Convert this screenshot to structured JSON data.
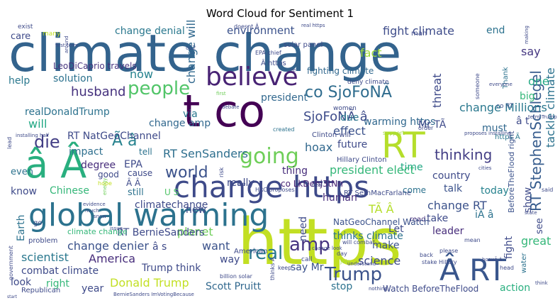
{
  "chart_data": {
    "type": "wordcloud",
    "title": "Word Cloud for Sentiment 1",
    "words": [
      {
        "text": "climate change",
        "color": "#33638d"
      },
      {
        "text": "t co",
        "color": "#440154"
      },
      {
        "text": "https",
        "color": "#c2df23"
      },
      {
        "text": "global warming",
        "color": "#2c728e"
      },
      {
        "text": "change https",
        "color": "#3e4a89"
      },
      {
        "text": "â Â",
        "color": "#29af7f"
      },
      {
        "text": "RT",
        "color": "#b5de2b"
      },
      {
        "text": "believe",
        "color": "#482374"
      },
      {
        "text": "Â RT",
        "color": "#39568c"
      },
      {
        "text": "going",
        "color": "#6ece58"
      },
      {
        "text": "people",
        "color": "#52c569"
      },
      {
        "text": "amp",
        "color": "#463480"
      },
      {
        "text": "real",
        "color": "#2a788e"
      },
      {
        "text": "Trump",
        "color": "#3b528b"
      },
      {
        "text": "co SjoFoNÃ",
        "color": "#2f6c8e"
      },
      {
        "text": "SjoFoNÃ â",
        "color": "#3e4c8a"
      },
      {
        "text": "die",
        "color": "#433e85"
      },
      {
        "text": "Ã â",
        "color": "#26828e"
      },
      {
        "text": "world",
        "color": "#3b528b"
      },
      {
        "text": "thinking",
        "color": "#433e85"
      },
      {
        "text": "RT SenSanders",
        "color": "#2e6f8e"
      },
      {
        "text": "RT StephenSchlegel",
        "color": "#365c8d"
      },
      {
        "text": "tackle climate",
        "color": "#2c728e"
      },
      {
        "text": "threat",
        "color": "#3e4a89"
      },
      {
        "text": "change Millions",
        "color": "#2a788e"
      },
      {
        "text": "co RT",
        "color": "#3b528b"
      },
      {
        "text": "say",
        "color": "#453781"
      },
      {
        "text": "one",
        "color": "#22a884"
      },
      {
        "text": "big",
        "color": "#35b779"
      },
      {
        "text": "must",
        "color": "#31688e"
      },
      {
        "text": "â t",
        "color": "#3e4a89"
      },
      {
        "text": "fight climate",
        "color": "#3e4c8a"
      },
      {
        "text": "end",
        "color": "#2c728e"
      },
      {
        "text": "fact",
        "color": "#a0da39"
      },
      {
        "text": "change denial",
        "color": "#2a788e"
      },
      {
        "text": "environment",
        "color": "#3b528b"
      },
      {
        "text": "change will",
        "color": "#31688e"
      },
      {
        "text": "now",
        "color": "#26828e"
      },
      {
        "text": "solution",
        "color": "#2c728e"
      },
      {
        "text": "help",
        "color": "#2a788e"
      },
      {
        "text": "care",
        "color": "#3e4a89"
      },
      {
        "text": "husband",
        "color": "#46327e"
      },
      {
        "text": "realDonaldTrump",
        "color": "#2c728e"
      },
      {
        "text": "will",
        "color": "#22a884"
      },
      {
        "text": "LeoDiCaprio travels",
        "color": "#46337e"
      },
      {
        "text": "president",
        "color": "#31688e"
      },
      {
        "text": "impact",
        "color": "#2e6f8e"
      },
      {
        "text": "EPA",
        "color": "#3e4a89"
      },
      {
        "text": "degree",
        "color": "#472d7b"
      },
      {
        "text": "via",
        "color": "#2a788e"
      },
      {
        "text": "change amp",
        "color": "#31688e"
      },
      {
        "text": "RT NatGeoChannel",
        "color": "#3e4a89"
      },
      {
        "text": "effect",
        "color": "#3b528b"
      },
      {
        "text": "warming https",
        "color": "#31688e"
      },
      {
        "text": "due",
        "color": "#2a788e"
      },
      {
        "text": "future",
        "color": "#3e4a89"
      },
      {
        "text": "time",
        "color": "#22a884"
      },
      {
        "text": "president elect",
        "color": "#35b779"
      },
      {
        "text": "hoax",
        "color": "#31688e"
      },
      {
        "text": "thing",
        "color": "#472d7b"
      },
      {
        "text": "really",
        "color": "#3e4a89"
      },
      {
        "text": "co LkDehj3tNn",
        "color": "#482374"
      },
      {
        "text": "Mr TÃ",
        "color": "#3e4a89"
      },
      {
        "text": "https Ã",
        "color": "#2a788e"
      },
      {
        "text": "BeforeTheFlood right",
        "color": "#3b528b"
      },
      {
        "text": "show",
        "color": "#3e4a89"
      },
      {
        "text": "country",
        "color": "#3e4a89"
      },
      {
        "text": "talk",
        "color": "#3b528b"
      },
      {
        "text": "today",
        "color": "#26828e"
      },
      {
        "text": "see",
        "color": "#3e4a89"
      },
      {
        "text": "come",
        "color": "#2c728e"
      },
      {
        "text": "human",
        "color": "#472d7b"
      },
      {
        "text": "change RT",
        "color": "#3b528b"
      },
      {
        "text": "take",
        "color": "#3e4a89"
      },
      {
        "text": "read",
        "color": "#46327e"
      },
      {
        "text": "TÃ Â",
        "color": "#b5de2b"
      },
      {
        "text": "iÃ â",
        "color": "#2c728e"
      },
      {
        "text": "Let",
        "color": "#3e4a89"
      },
      {
        "text": "leader",
        "color": "#472d7b"
      },
      {
        "text": "great",
        "color": "#35b779"
      },
      {
        "text": "fight",
        "color": "#3e4a89"
      },
      {
        "text": "make",
        "color": "#3b528b"
      },
      {
        "text": "science",
        "color": "#3e4a89"
      },
      {
        "text": "stop",
        "color": "#2c728e"
      },
      {
        "text": "action",
        "color": "#29af7f"
      },
      {
        "text": "Watch BeforeTheFlood",
        "color": "#3e4a89"
      },
      {
        "text": "say Mr",
        "color": "#3b528b"
      },
      {
        "text": "thinks climate",
        "color": "#2c728e"
      },
      {
        "text": "need",
        "color": "#3e4a89"
      },
      {
        "text": "Scott Pruitt",
        "color": "#31688e"
      },
      {
        "text": "Donald Trump",
        "color": "#c2df23"
      },
      {
        "text": "year",
        "color": "#3e4a89"
      },
      {
        "text": "Trump think",
        "color": "#3e4a89"
      },
      {
        "text": "way",
        "color": "#3e4a89"
      },
      {
        "text": "want",
        "color": "#3b528b"
      },
      {
        "text": "planet",
        "color": "#6ece58"
      },
      {
        "text": "â s",
        "color": "#3e4a89"
      },
      {
        "text": "change denier",
        "color": "#3b528b"
      },
      {
        "text": "America",
        "color": "#472d7b"
      },
      {
        "text": "scientist",
        "color": "#2a788e"
      },
      {
        "text": "combat climate",
        "color": "#3e4a89"
      },
      {
        "text": "look",
        "color": "#3e4a89"
      },
      {
        "text": "right",
        "color": "#35b779"
      },
      {
        "text": "RT BernieSanders",
        "color": "#3e4a89"
      },
      {
        "text": "climate change",
        "color": "#35b779"
      },
      {
        "text": "Earth",
        "color": "#2c728e"
      },
      {
        "text": "problem",
        "color": "#3e4a89"
      },
      {
        "text": "Chinese",
        "color": "#35b779"
      },
      {
        "text": "know",
        "color": "#3e4a89"
      },
      {
        "text": "even",
        "color": "#2c728e"
      },
      {
        "text": "still",
        "color": "#2c728e"
      },
      {
        "text": "U S",
        "color": "#52c569"
      },
      {
        "text": "climatechange",
        "color": "#3e4a89"
      },
      {
        "text": "Â Â",
        "color": "#3e4a89"
      },
      {
        "text": "good",
        "color": "#3e4a89"
      },
      {
        "text": "cause",
        "color": "#3e4a89"
      },
      {
        "text": "tell",
        "color": "#2c728e"
      },
      {
        "text": "new",
        "color": "#3e4a89"
      },
      {
        "text": "RT SethMacFarlane",
        "color": "#3e4a89"
      },
      {
        "text": "NatGeoChannel Watch",
        "color": "#3b528b"
      },
      {
        "text": "Hillary Clinton",
        "color": "#3e4a89"
      },
      {
        "text": "Clinton will",
        "color": "#3e4a89"
      },
      {
        "text": "fighting climate",
        "color": "#31688e"
      },
      {
        "text": "Â https",
        "color": "#3e4a89"
      },
      {
        "text": "EPA chief",
        "color": "#3e4a89"
      },
      {
        "text": "co2",
        "color": "#3e4a89"
      },
      {
        "text": "doesnt Â",
        "color": "#3e4a89"
      },
      {
        "text": "Thank",
        "color": "#2c728e"
      },
      {
        "text": "support",
        "color": "#a0da39"
      },
      {
        "text": "deny climate",
        "color": "#3e4a89"
      },
      {
        "text": "women",
        "color": "#3e4a89"
      },
      {
        "text": "HRC proposes",
        "color": "#3e4a89"
      },
      {
        "text": "ice",
        "color": "#3e4a89"
      },
      {
        "text": "risk",
        "color": "#3e4a89"
      },
      {
        "text": "water",
        "color": "#2c728e"
      },
      {
        "text": "Republican",
        "color": "#3e4a89"
      },
      {
        "text": "BernieSanders ImVotingBecause",
        "color": "#3e4a89"
      },
      {
        "text": "billion solar",
        "color": "#3e4a89"
      },
      {
        "text": "American",
        "color": "#3e4a89"
      },
      {
        "text": "created",
        "color": "#2c728e"
      },
      {
        "text": "solar panel",
        "color": "#3e4a89"
      },
      {
        "text": "man",
        "color": "#3e4a89"
      },
      {
        "text": "exist",
        "color": "#3e4a89"
      },
      {
        "text": "many",
        "color": "#c2df23"
      },
      {
        "text": "evidence",
        "color": "#3e4a89"
      },
      {
        "text": "government",
        "color": "#3e4a89"
      },
      {
        "text": "energy",
        "color": "#6ece58"
      },
      {
        "text": "go",
        "color": "#3e4a89"
      },
      {
        "text": "day",
        "color": "#3e4a89"
      },
      {
        "text": "join",
        "color": "#a0da39"
      },
      {
        "text": "keep",
        "color": "#3e4a89"
      },
      {
        "text": "call",
        "color": "#3e4a89"
      },
      {
        "text": "change look",
        "color": "#3e4a89"
      },
      {
        "text": "will combat",
        "color": "#3e4a89"
      },
      {
        "text": "understand",
        "color": "#3e4a89"
      },
      {
        "text": "please",
        "color": "#3e4a89"
      },
      {
        "text": "back",
        "color": "#3e4a89"
      },
      {
        "text": "stake Hillary",
        "color": "#3e4a89"
      },
      {
        "text": "head",
        "color": "#3e4a89"
      },
      {
        "text": "mean",
        "color": "#3e4a89"
      },
      {
        "text": "hoaxÃ â",
        "color": "#3e4a89"
      },
      {
        "text": "think",
        "color": "#3e4a89"
      },
      {
        "text": "nothing",
        "color": "#3e4a89"
      },
      {
        "text": "order",
        "color": "#3e4a89"
      },
      {
        "text": "everyone",
        "color": "#3e4a89"
      },
      {
        "text": "making",
        "color": "#3e4a89"
      },
      {
        "text": "someone",
        "color": "#3e4a89"
      },
      {
        "text": "debate",
        "color": "#3e4a89"
      },
      {
        "text": "first",
        "color": "#6ece58"
      },
      {
        "text": "re",
        "color": "#3e4a89"
      },
      {
        "text": "real https",
        "color": "#3e4a89"
      },
      {
        "text": "term Trump",
        "color": "#3e4a89"
      },
      {
        "text": "proposes installing",
        "color": "#3e4a89"
      },
      {
        "text": "installing half",
        "color": "#3e4a89"
      },
      {
        "text": "lead",
        "color": "#3e4a89"
      },
      {
        "text": "hope",
        "color": "#c2df23"
      },
      {
        "text": "snow",
        "color": "#3e4a89"
      },
      {
        "text": "much",
        "color": "#3e4a89"
      },
      {
        "text": "issue",
        "color": "#3e4a89"
      },
      {
        "text": "deal",
        "color": "#3e4a89"
      },
      {
        "text": "said",
        "color": "#3e4a89"
      },
      {
        "text": "state",
        "color": "#3e4a89"
      },
      {
        "text": "cities",
        "color": "#3e4a89"
      },
      {
        "text": "thinks Ã",
        "color": "#3e4a89"
      },
      {
        "text": "around",
        "color": "#3e4a89"
      },
      {
        "text": "first term",
        "color": "#3e4a89"
      },
      {
        "text": "start",
        "color": "#3e4a89"
      }
    ]
  }
}
